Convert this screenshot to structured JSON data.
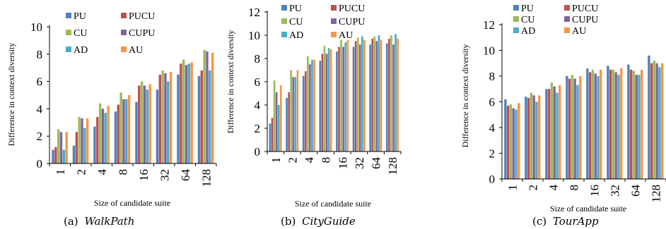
{
  "colors": {
    "PU": "#4f81bd",
    "PUCU": "#c0504d",
    "CU": "#9bbb59",
    "CUPU": "#8064a2",
    "AD": "#4bacc6",
    "AU": "#f79646"
  },
  "chart_data": [
    {
      "type": "bar",
      "caption_prefix": "(a)",
      "caption_name": "WalkPath",
      "xlabel": "Size of candidate suite",
      "ylabel": "Difference in context diversity",
      "categories": [
        "1",
        "2",
        "4",
        "8",
        "16",
        "32",
        "64",
        "128"
      ],
      "ylim": [
        0,
        10
      ],
      "yticks": [
        0,
        2,
        4,
        6,
        8,
        10
      ],
      "grid": false,
      "legend": "top-left, inside plot",
      "series": [
        {
          "name": "PU",
          "values": [
            1.0,
            1.3,
            2.7,
            3.8,
            4.5,
            5.4,
            6.5,
            6.4
          ]
        },
        {
          "name": "PUCU",
          "values": [
            1.2,
            2.3,
            3.4,
            4.3,
            5.7,
            6.5,
            7.3,
            6.8
          ]
        },
        {
          "name": "CU",
          "values": [
            2.5,
            3.4,
            4.4,
            5.2,
            6.0,
            6.8,
            7.6,
            8.3
          ]
        },
        {
          "name": "CUPU",
          "values": [
            2.3,
            3.3,
            4.0,
            4.7,
            5.7,
            6.6,
            7.2,
            8.2
          ]
        },
        {
          "name": "AD",
          "values": [
            1.0,
            2.6,
            3.7,
            4.7,
            5.4,
            6.0,
            7.3,
            6.8
          ]
        },
        {
          "name": "AU",
          "values": [
            2.3,
            3.3,
            4.2,
            5.0,
            5.8,
            6.7,
            7.4,
            8.1
          ]
        }
      ]
    },
    {
      "type": "bar",
      "caption_prefix": "(b)",
      "caption_name": "CityGuide",
      "xlabel": "Size of candidate suite",
      "ylabel": "Difference in context diversity",
      "categories": [
        "1",
        "2",
        "4",
        "8",
        "16",
        "32",
        "64",
        "128"
      ],
      "ylim": [
        0,
        12
      ],
      "yticks": [
        0,
        2,
        4,
        6,
        8,
        10,
        12
      ],
      "grid": false,
      "legend": "top-left, inside plot",
      "series": [
        {
          "name": "PU",
          "values": [
            2.4,
            4.6,
            6.5,
            7.8,
            8.6,
            9.0,
            9.2,
            9.3
          ]
        },
        {
          "name": "PUCU",
          "values": [
            2.9,
            5.1,
            6.9,
            8.4,
            9.0,
            9.5,
            9.7,
            9.7
          ]
        },
        {
          "name": "CU",
          "values": [
            6.1,
            7.0,
            8.2,
            9.1,
            9.6,
            9.8,
            9.9,
            10.0
          ]
        },
        {
          "name": "CUPU",
          "values": [
            5.1,
            6.4,
            7.5,
            8.4,
            9.0,
            9.2,
            9.5,
            9.2
          ]
        },
        {
          "name": "AD",
          "values": [
            4.0,
            6.4,
            7.9,
            8.9,
            9.4,
            9.9,
            10.0,
            10.1
          ]
        },
        {
          "name": "AU",
          "values": [
            5.7,
            7.0,
            7.9,
            8.8,
            9.6,
            9.6,
            9.6,
            9.7
          ]
        }
      ]
    },
    {
      "type": "bar",
      "caption_prefix": "(c)",
      "caption_name": "TourApp",
      "xlabel": "Size of candidate suite",
      "ylabel": "Difference in context diversity",
      "categories": [
        "1",
        "2",
        "4",
        "8",
        "16",
        "32",
        "64",
        "128"
      ],
      "ylim": [
        0,
        12
      ],
      "yticks": [
        0,
        2,
        4,
        6,
        8,
        10,
        12
      ],
      "grid": false,
      "legend": "top-left, inside plot",
      "series": [
        {
          "name": "PU",
          "values": [
            6.2,
            6.4,
            7.0,
            8.0,
            8.6,
            8.8,
            8.9,
            9.6
          ]
        },
        {
          "name": "PUCU",
          "values": [
            5.7,
            6.3,
            7.0,
            7.8,
            8.3,
            8.5,
            8.5,
            9.0
          ]
        },
        {
          "name": "CU",
          "values": [
            5.8,
            6.7,
            7.5,
            8.1,
            8.5,
            8.5,
            8.4,
            9.2
          ]
        },
        {
          "name": "CUPU",
          "values": [
            5.5,
            6.5,
            7.2,
            7.8,
            8.2,
            8.3,
            8.1,
            9.0
          ]
        },
        {
          "name": "AD",
          "values": [
            5.4,
            6.0,
            6.7,
            7.3,
            8.0,
            8.1,
            8.1,
            8.7
          ]
        },
        {
          "name": "AU",
          "values": [
            5.9,
            6.5,
            7.3,
            8.0,
            8.5,
            8.6,
            8.5,
            9.0
          ]
        }
      ]
    }
  ]
}
